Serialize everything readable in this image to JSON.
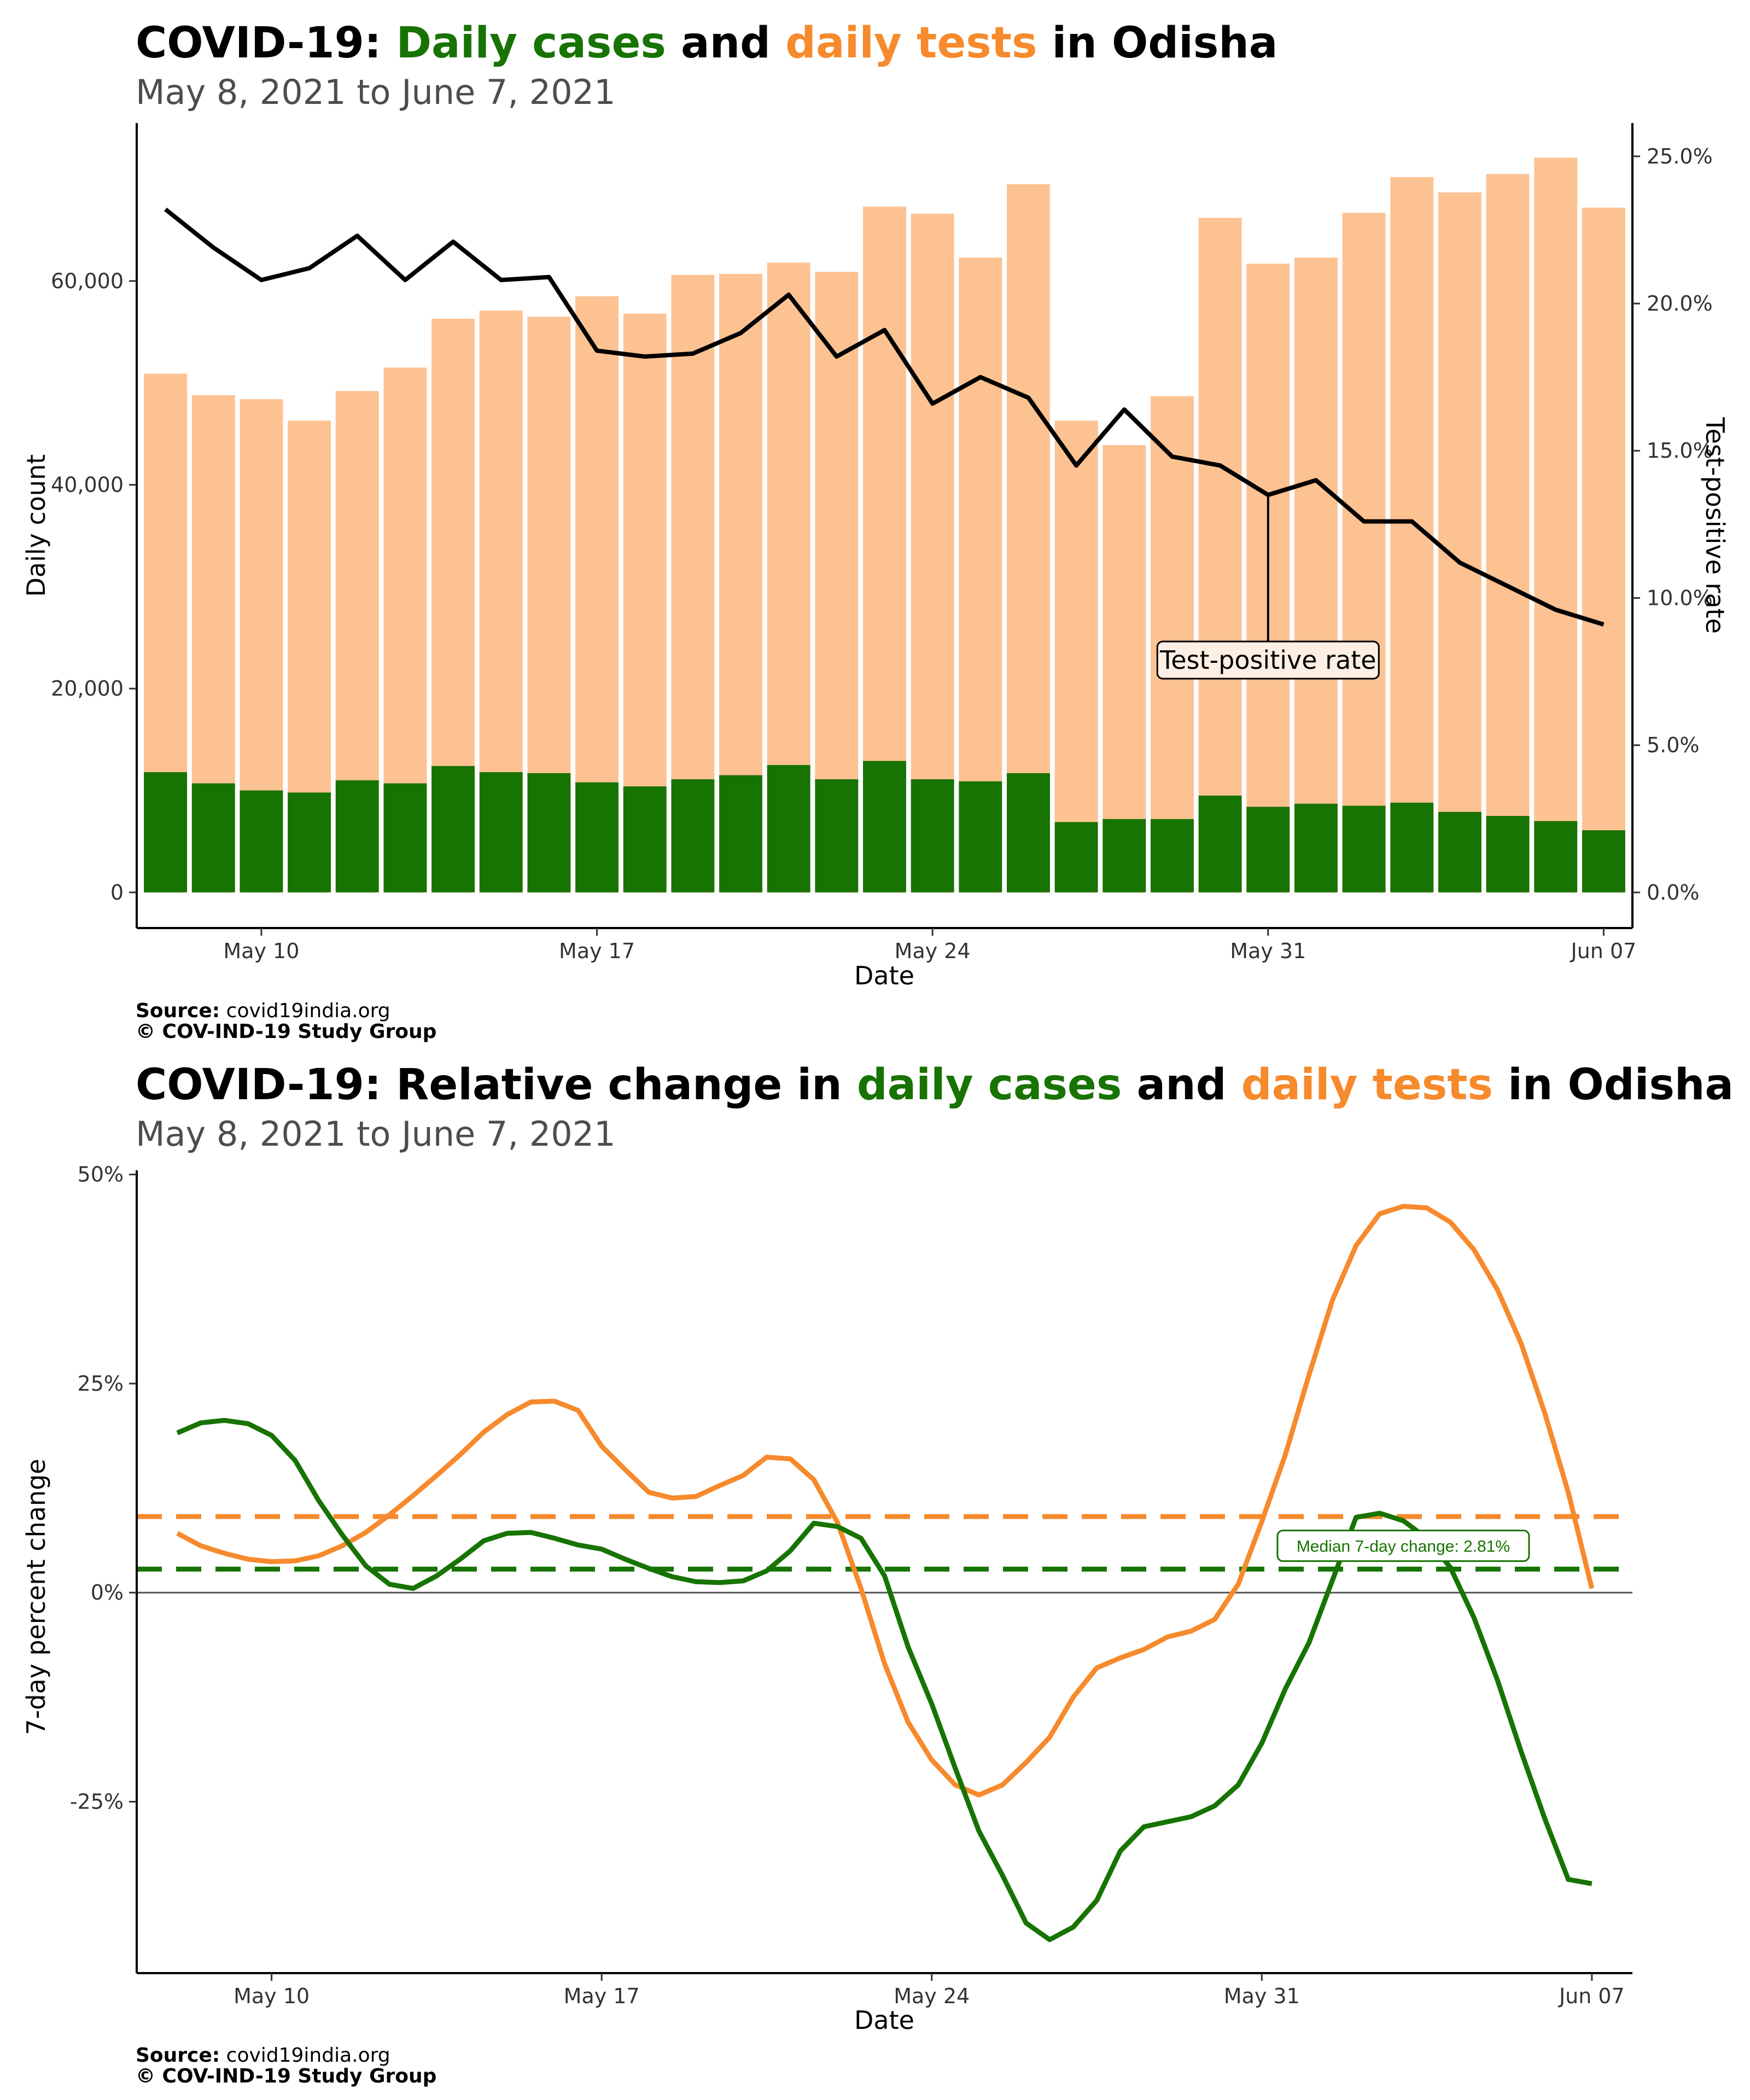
{
  "colors": {
    "cases": "#177302",
    "tests": "#f68a2c",
    "tests_bar": "#fdc292",
    "tpr": "#000000",
    "median_label": "#177302"
  },
  "top": {
    "title": {
      "prefix": "COVID-19: ",
      "cases": "Daily cases",
      "mid": " and ",
      "tests": "daily tests",
      "suffix": " in Odisha"
    },
    "subtitle": "May  8, 2021 to June  7, 2021",
    "caption": {
      "source_label": "Source:",
      "source": " covid19india.org",
      "copyright": "© COV-IND-19 Study Group"
    }
  },
  "bottom": {
    "title": {
      "prefix": "COVID-19: Relative change in ",
      "cases": "daily cases",
      "mid": " and ",
      "tests": "daily tests",
      "suffix": " in Odisha"
    },
    "subtitle": "May  8, 2021 to June  7, 2021",
    "caption": {
      "source_label": "Source:",
      "source": " covid19india.org",
      "copyright": "© COV-IND-19 Study Group"
    }
  },
  "chart_data": [
    {
      "type": "bar",
      "xlabel": "Date",
      "ylabel": "Daily count",
      "y2label": "Test-positive rate",
      "ylim": [
        -3500,
        75500
      ],
      "y2lim": [
        -0.0121,
        0.2613
      ],
      "yticks": [
        0,
        20000,
        40000,
        60000
      ],
      "ytick_labels": [
        "0",
        "20,000",
        "40,000",
        "60,000"
      ],
      "y2ticks": [
        0,
        0.05,
        0.1,
        0.15,
        0.2,
        0.25
      ],
      "y2tick_labels": [
        "0.0%",
        "5.0%",
        "10.0%",
        "15.0%",
        "20.0%",
        "25.0%"
      ],
      "xticks": [
        "2021-05-10",
        "2021-05-17",
        "2021-05-24",
        "2021-05-31",
        "2021-06-07"
      ],
      "xtick_labels": [
        "May 10",
        "May 17",
        "May 24",
        "May 31",
        "Jun 07"
      ],
      "dates": [
        "2021-05-08",
        "2021-05-09",
        "2021-05-10",
        "2021-05-11",
        "2021-05-12",
        "2021-05-13",
        "2021-05-14",
        "2021-05-15",
        "2021-05-16",
        "2021-05-17",
        "2021-05-18",
        "2021-05-19",
        "2021-05-20",
        "2021-05-21",
        "2021-05-22",
        "2021-05-23",
        "2021-05-24",
        "2021-05-25",
        "2021-05-26",
        "2021-05-27",
        "2021-05-28",
        "2021-05-29",
        "2021-05-30",
        "2021-05-31",
        "2021-06-01",
        "2021-06-02",
        "2021-06-03",
        "2021-06-04",
        "2021-06-05",
        "2021-06-06",
        "2021-06-07"
      ],
      "series": [
        {
          "name": "Daily tests",
          "values": [
            50900,
            48800,
            48400,
            46300,
            49200,
            51500,
            56300,
            57100,
            56500,
            58500,
            56800,
            60600,
            60700,
            61800,
            60900,
            67300,
            66600,
            62300,
            69500,
            46300,
            43900,
            48700,
            66200,
            61700,
            62300,
            66700,
            70200,
            68700,
            70500,
            72100,
            67200
          ]
        },
        {
          "name": "Daily cases",
          "values": [
            11800,
            10700,
            10000,
            9800,
            11000,
            10700,
            12400,
            11800,
            11700,
            10800,
            10400,
            11100,
            11500,
            12500,
            11100,
            12900,
            11100,
            10900,
            11700,
            6900,
            7200,
            7200,
            9500,
            8400,
            8700,
            8500,
            8800,
            7900,
            7500,
            7000,
            6100
          ]
        },
        {
          "name": "Test-positive rate",
          "values": [
            0.232,
            0.219,
            0.208,
            0.212,
            0.223,
            0.208,
            0.221,
            0.208,
            0.209,
            0.184,
            0.182,
            0.183,
            0.19,
            0.203,
            0.182,
            0.191,
            0.166,
            0.175,
            0.168,
            0.145,
            0.164,
            0.148,
            0.145,
            0.135,
            0.14,
            0.126,
            0.126,
            0.112,
            0.104,
            0.096,
            0.091
          ]
        }
      ],
      "annotation": {
        "text": "Test-positive rate",
        "date": "2021-05-31",
        "value": 0.135
      }
    },
    {
      "type": "line",
      "xlabel": "Date",
      "ylabel": "7-day percent change",
      "ylim": [
        -45.5,
        50.5
      ],
      "yticks": [
        -25,
        0,
        25,
        50
      ],
      "ytick_labels": [
        "-25%",
        "0%",
        "25%",
        "50%"
      ],
      "xticks": [
        "2021-05-10",
        "2021-05-17",
        "2021-05-24",
        "2021-05-31",
        "2021-06-07"
      ],
      "xtick_labels": [
        "May 10",
        "May 17",
        "May 24",
        "May 31",
        "Jun 07"
      ],
      "x": [
        "2021-05-08",
        "2021-05-08 12:00",
        "2021-05-09",
        "2021-05-09 12:00",
        "2021-05-10",
        "2021-05-10 12:00",
        "2021-05-11",
        "2021-05-11 12:00",
        "2021-05-12",
        "2021-05-12 12:00",
        "2021-05-13",
        "2021-05-13 12:00",
        "2021-05-14",
        "2021-05-14 12:00",
        "2021-05-15",
        "2021-05-15 12:00",
        "2021-05-16",
        "2021-05-16 12:00",
        "2021-05-17",
        "2021-05-17 12:00",
        "2021-05-18",
        "2021-05-18 12:00",
        "2021-05-19",
        "2021-05-19 12:00",
        "2021-05-20",
        "2021-05-20 12:00",
        "2021-05-21",
        "2021-05-21 12:00",
        "2021-05-22",
        "2021-05-22 12:00",
        "2021-05-23",
        "2021-05-23 12:00",
        "2021-05-24",
        "2021-05-24 12:00",
        "2021-05-25",
        "2021-05-25 12:00",
        "2021-05-26",
        "2021-05-26 12:00",
        "2021-05-27",
        "2021-05-27 12:00",
        "2021-05-28",
        "2021-05-28 12:00",
        "2021-05-29",
        "2021-05-29 12:00",
        "2021-05-30",
        "2021-05-30 12:00",
        "2021-05-31",
        "2021-05-31 12:00",
        "2021-06-01",
        "2021-06-01 12:00",
        "2021-06-02",
        "2021-06-02 12:00",
        "2021-06-03",
        "2021-06-03 12:00",
        "2021-06-04",
        "2021-06-04 12:00",
        "2021-06-05",
        "2021-06-05 12:00",
        "2021-06-06",
        "2021-06-06 12:00",
        "2021-06-07"
      ],
      "series": [
        {
          "name": "Daily tests",
          "values": [
            7.1,
            5.6,
            4.7,
            4.0,
            3.7,
            3.8,
            4.4,
            5.6,
            7.2,
            9.3,
            11.6,
            14.0,
            16.5,
            19.2,
            21.3,
            22.8,
            22.9,
            21.8,
            17.5,
            14.7,
            12.0,
            11.3,
            11.5,
            12.8,
            14.0,
            16.2,
            16.0,
            13.5,
            8.4,
            0.5,
            -8.5,
            -15.5,
            -20.0,
            -23.0,
            -24.2,
            -23.0,
            -20.3,
            -17.3,
            -12.5,
            -9.0,
            -7.8,
            -6.8,
            -5.3,
            -4.6,
            -3.2,
            1.0,
            8.5,
            16.5,
            26.0,
            35.0,
            41.5,
            45.3,
            46.2,
            46.0,
            44.3,
            41.0,
            36.2,
            29.8,
            21.5,
            12.0,
            0.5
          ]
        },
        {
          "name": "Daily cases",
          "values": [
            19.1,
            20.3,
            20.6,
            20.2,
            18.8,
            15.8,
            11.0,
            6.9,
            3.2,
            1.0,
            0.5,
            2.0,
            4.0,
            6.2,
            7.1,
            7.2,
            6.5,
            5.7,
            5.2,
            4.0,
            2.9,
            1.9,
            1.3,
            1.2,
            1.4,
            2.6,
            5.0,
            8.3,
            7.9,
            6.5,
            2.0,
            -6.5,
            -13.3,
            -21.0,
            -28.5,
            -33.8,
            -39.5,
            -41.5,
            -40.0,
            -36.8,
            -30.9,
            -28.0,
            -27.4,
            -26.8,
            -25.5,
            -23.0,
            -18.0,
            -11.5,
            -6.0,
            1.5,
            9.0,
            9.5,
            8.6,
            6.5,
            3.0,
            -3.0,
            -10.5,
            -19.0,
            -27.0,
            -34.3,
            -34.8
          ]
        }
      ],
      "median_lines": [
        {
          "name": "Daily tests",
          "value": 9.1
        },
        {
          "name": "Daily cases",
          "value": 2.81
        }
      ],
      "annotation": {
        "text": "Median 7-day change: 2.81%",
        "date": "2021-06-03",
        "value": 5.6
      }
    }
  ]
}
